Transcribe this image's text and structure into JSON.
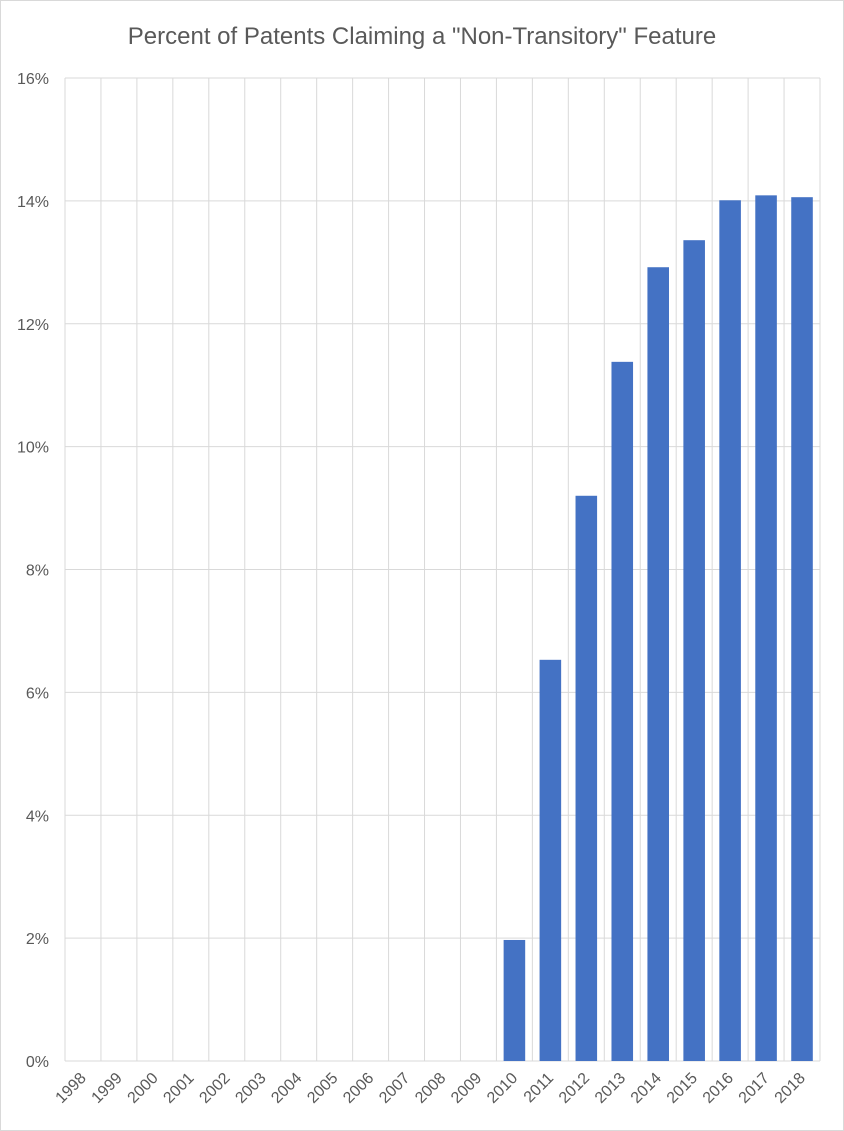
{
  "chart_data": {
    "type": "bar",
    "title": "Percent of Patents Claiming a \"Non-Transitory\" Feature",
    "xlabel": "",
    "ylabel": "",
    "categories": [
      "1998",
      "1999",
      "2000",
      "2001",
      "2002",
      "2003",
      "2004",
      "2005",
      "2006",
      "2007",
      "2008",
      "2009",
      "2010",
      "2011",
      "2012",
      "2013",
      "2014",
      "2015",
      "2016",
      "2017",
      "2018"
    ],
    "values": [
      0,
      0,
      0,
      0,
      0,
      0,
      0,
      0,
      0,
      0,
      0,
      0,
      1.97,
      6.53,
      9.2,
      11.38,
      12.92,
      13.36,
      14.01,
      14.09,
      14.06
    ],
    "ylim": [
      0,
      16
    ],
    "yticks": [
      "0%",
      "2%",
      "4%",
      "6%",
      "8%",
      "10%",
      "12%",
      "14%",
      "16%"
    ],
    "grid": true,
    "legend": "none",
    "colors": {
      "bar": "#4472C4",
      "grid": "#d9d9d9",
      "text": "#595959"
    }
  }
}
